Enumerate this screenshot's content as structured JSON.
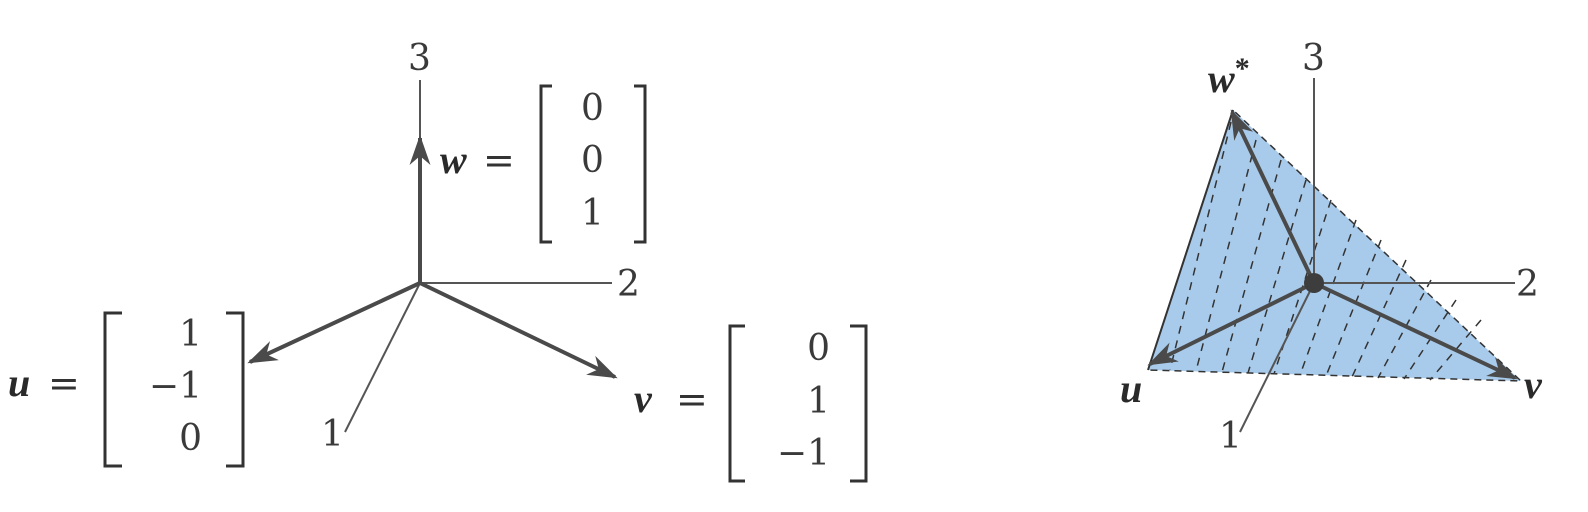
{
  "left_diagram": {
    "axis_labels": {
      "axis1": "1",
      "axis2": "2",
      "axis3": "3"
    },
    "vectors": {
      "w": {
        "label": "w",
        "equals": "=",
        "components": [
          "0",
          "0",
          "1"
        ]
      },
      "u": {
        "label": "u",
        "equals": "=",
        "components": [
          "1",
          "−1",
          "0"
        ]
      },
      "v": {
        "label": "v",
        "equals": "=",
        "components": [
          "0",
          "1",
          "−1"
        ]
      }
    }
  },
  "right_diagram": {
    "axis_labels": {
      "axis1": "1",
      "axis2": "2",
      "axis3": "3"
    },
    "vector_labels": {
      "w_star": "w",
      "w_star_sup": "*",
      "u": "u",
      "v": "v"
    },
    "plane_color": "#a9cbeb"
  }
}
